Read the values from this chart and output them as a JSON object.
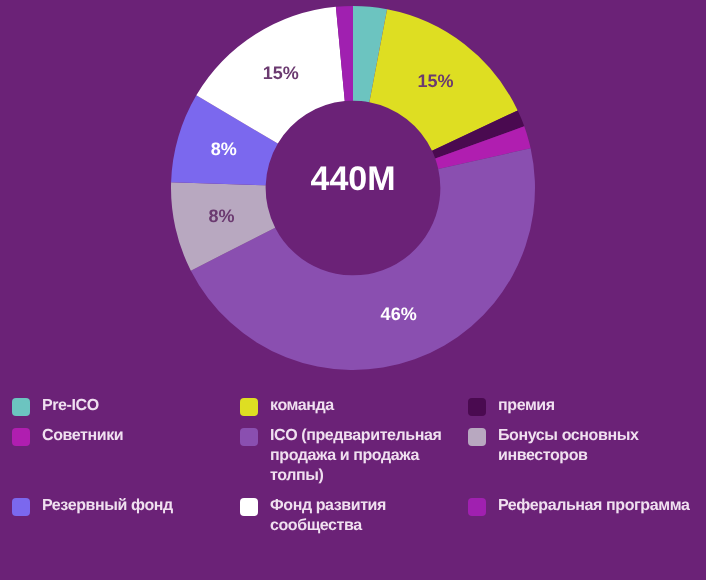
{
  "chart_data": {
    "type": "donut",
    "categories": [
      "Pre-ICO",
      "команда",
      "премия",
      "Советники",
      "ICO (предварительная продажа и продажа толпы)",
      "Бонусы основных инвесторов",
      "Резервный фонд",
      "Фонд развития сообщества",
      "Реферальная программа"
    ],
    "values": [
      3,
      15,
      1.5,
      2,
      46,
      8,
      8,
      15,
      1.5
    ],
    "value_labels": [
      null,
      "15%",
      null,
      null,
      "46%",
      "8%",
      "8%",
      "15%",
      null
    ],
    "colors": [
      "#6cc4c0",
      "#dede22",
      "#4a0a50",
      "#b01eb0",
      "#8a4fb0",
      "#b8a8c0",
      "#7b68ee",
      "#ffffff",
      "#a020b0"
    ],
    "annotations": [
      "440M"
    ],
    "legend": "bottom"
  }
}
